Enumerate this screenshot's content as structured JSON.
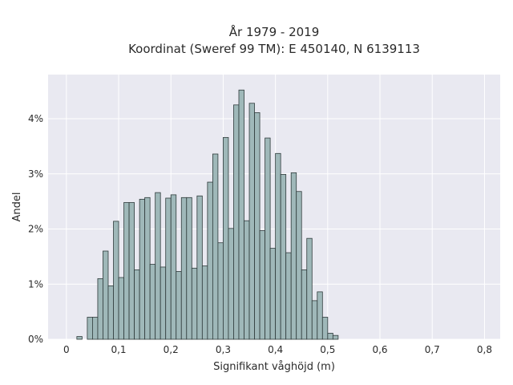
{
  "chart_data": {
    "type": "bar",
    "title_line1": "År 1979 - 2019",
    "title_line2": "Koordinat (Sweref 99 TM): E 450140, N 6139113",
    "xlabel": "Signifikant våghöjd (m)",
    "ylabel": "Andel",
    "xlim": [
      -0.035,
      0.83
    ],
    "ylim": [
      0,
      4.8
    ],
    "bin_width": 0.01,
    "x_ticks": [
      0,
      0.1,
      0.2,
      0.3,
      0.4,
      0.5,
      0.6,
      0.7,
      0.8
    ],
    "x_tick_labels": [
      "0",
      "0,1",
      "0,2",
      "0,3",
      "0,4",
      "0,5",
      "0,6",
      "0,7",
      "0,8"
    ],
    "y_ticks": [
      0,
      1,
      2,
      3,
      4
    ],
    "y_tick_labels": [
      "0%",
      "1%",
      "2%",
      "3%",
      "4%"
    ],
    "grid": true,
    "bins_start": [
      0.01,
      0.02,
      0.03,
      0.04,
      0.05,
      0.06,
      0.07,
      0.08,
      0.09,
      0.1,
      0.11,
      0.12,
      0.13,
      0.14,
      0.15,
      0.16,
      0.17,
      0.18,
      0.19,
      0.2,
      0.21,
      0.22,
      0.23,
      0.24,
      0.25,
      0.26,
      0.27,
      0.28,
      0.29,
      0.3,
      0.31,
      0.32,
      0.33,
      0.34,
      0.35,
      0.36,
      0.37,
      0.38,
      0.39,
      0.4,
      0.41,
      0.42,
      0.43,
      0.44,
      0.45,
      0.46,
      0.47,
      0.48,
      0.49,
      0.5,
      0.51,
      0.52,
      0.53,
      0.54,
      0.55,
      0.56,
      0.57,
      0.58,
      0.59,
      0.6,
      0.61,
      0.62,
      0.63,
      0.64,
      0.65,
      0.66,
      0.67,
      0.68,
      0.69,
      0.7,
      0.71,
      0.72,
      0.73,
      0.74,
      0.75,
      0.76,
      0.77,
      0.78,
      0.79,
      0.8
    ],
    "values": [
      0,
      0.05,
      0,
      0.4,
      0.4,
      1.1,
      1.6,
      0.97,
      2.14,
      1.12,
      2.48,
      2.48,
      1.26,
      2.54,
      2.57,
      1.36,
      2.66,
      1.31,
      2.56,
      2.62,
      1.23,
      2.57,
      2.57,
      1.29,
      2.6,
      1.33,
      2.85,
      3.36,
      1.75,
      3.66,
      2.01,
      4.25,
      4.52,
      2.15,
      4.28,
      4.11,
      1.97,
      3.65,
      1.65,
      3.37,
      2.99,
      1.57,
      3.02,
      2.68,
      1.26,
      1.83,
      0.7,
      0.86,
      0.4,
      0.11,
      0.07,
      0,
      0,
      0,
      0,
      0,
      0,
      0,
      0,
      0,
      0,
      0,
      0,
      0,
      0,
      0,
      0,
      0,
      0,
      0,
      0,
      0,
      0,
      0,
      0,
      0,
      0,
      0,
      0,
      0
    ]
  }
}
